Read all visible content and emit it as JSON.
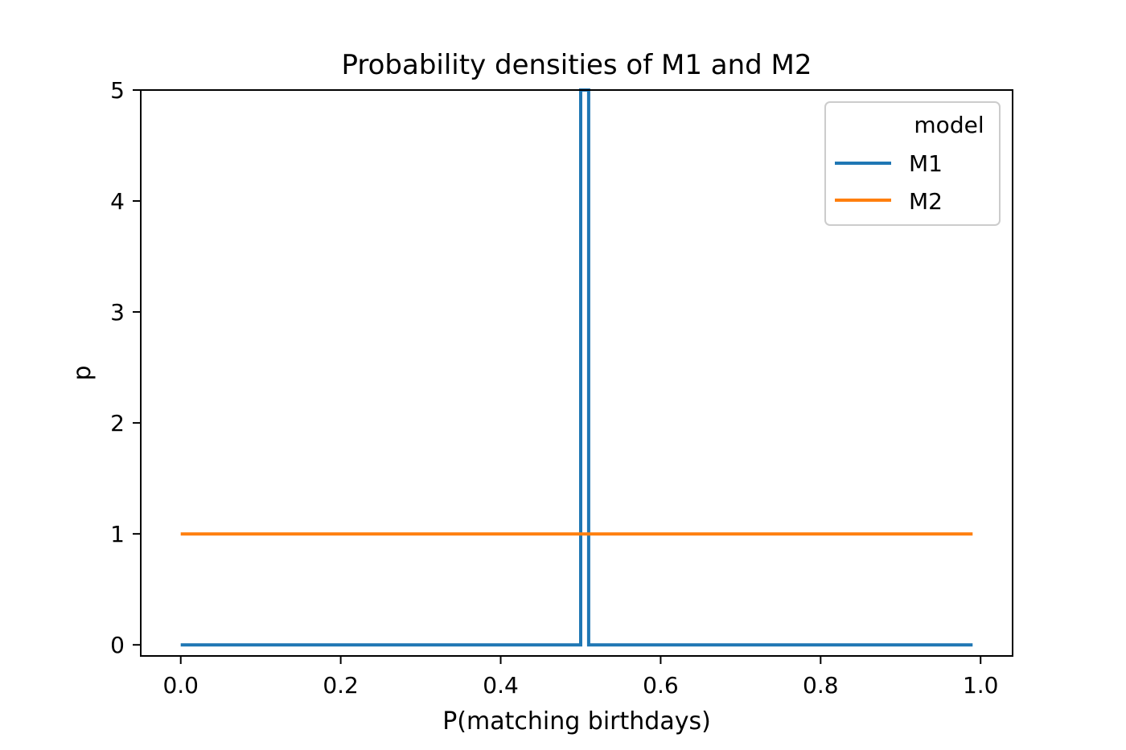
{
  "chart_data": {
    "type": "line",
    "title": "Probability densities of M1 and M2",
    "xlabel": "P(matching birthdays)",
    "ylabel": "p",
    "xlim": [
      -0.05,
      1.04
    ],
    "ylim": [
      -0.1,
      5
    ],
    "x_ticks": [
      "0.0",
      "0.2",
      "0.4",
      "0.6",
      "0.8",
      "1.0"
    ],
    "y_ticks": [
      "0",
      "1",
      "2",
      "3",
      "4",
      "5"
    ],
    "grid": false,
    "legend": {
      "title": "model",
      "placement": "top-right"
    },
    "series": [
      {
        "name": "M1",
        "color": "#1f77b4",
        "points": [
          [
            0.0,
            0
          ],
          [
            0.5,
            0
          ],
          [
            0.5,
            5
          ],
          [
            0.51,
            5
          ],
          [
            0.51,
            0
          ],
          [
            0.99,
            0
          ]
        ]
      },
      {
        "name": "M2",
        "color": "#ff7f0e",
        "points": [
          [
            0.0,
            1
          ],
          [
            0.99,
            1
          ]
        ]
      }
    ]
  }
}
